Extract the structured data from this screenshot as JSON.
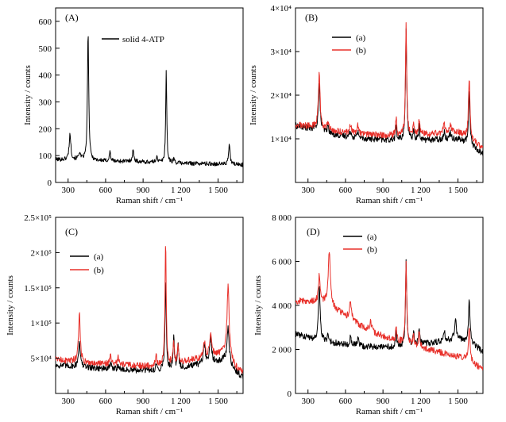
{
  "chart_data": [
    {
      "panel": "(A)",
      "type": "line",
      "xlabel": "Raman shift / cm⁻¹",
      "ylabel": "Intensity / counts",
      "xlim": [
        200,
        1700
      ],
      "ylim": [
        0,
        650
      ],
      "x_ticks": [
        300,
        600,
        900,
        1200,
        1500
      ],
      "x_tick_labels": [
        "300",
        "600",
        "900",
        "1 200",
        "1 500"
      ],
      "y_ticks": [
        0,
        100,
        200,
        300,
        400,
        500,
        600
      ],
      "y_tick_labels": [
        "0",
        "100",
        "200",
        "300",
        "400",
        "500",
        "600"
      ],
      "legend": "top-right",
      "series": [
        {
          "name": "solid 4-ATP",
          "color": "#000000",
          "baseline": [
            [
              200,
              85
            ],
            [
              400,
              85
            ],
            [
              600,
              80
            ],
            [
              800,
              78
            ],
            [
              1000,
              75
            ],
            [
              1200,
              72
            ],
            [
              1400,
              70
            ],
            [
              1600,
              68
            ],
            [
              1700,
              66
            ]
          ],
          "peaks": [
            [
              315,
              95,
              8
            ],
            [
              390,
              25,
              8
            ],
            [
              460,
              480,
              6
            ],
            [
              635,
              35,
              6
            ],
            [
              820,
              40,
              8
            ],
            [
              1010,
              25,
              6
            ],
            [
              1085,
              345,
              5
            ],
            [
              1145,
              15,
              6
            ],
            [
              1590,
              80,
              6
            ]
          ]
        }
      ]
    },
    {
      "panel": "(B)",
      "type": "line",
      "xlabel": "Raman shift / cm⁻¹",
      "ylabel": "Intensity / counts",
      "xlim": [
        200,
        1700
      ],
      "ylim": [
        0,
        40000
      ],
      "x_ticks": [
        300,
        600,
        900,
        1200,
        1500
      ],
      "x_tick_labels": [
        "300",
        "600",
        "900",
        "1 200",
        "1 500"
      ],
      "y_ticks": [
        10000,
        20000,
        30000,
        40000
      ],
      "y_tick_labels": [
        "1×10⁴",
        "2×10⁴",
        "3×10⁴",
        "4×10⁴"
      ],
      "legend": "top-left",
      "series": [
        {
          "name": "(a)",
          "color": "#000000",
          "baseline": [
            [
              200,
              13000
            ],
            [
              350,
              12200
            ],
            [
              500,
              11000
            ],
            [
              700,
              10200
            ],
            [
              900,
              9800
            ],
            [
              1100,
              9600
            ],
            [
              1300,
              9800
            ],
            [
              1500,
              10000
            ],
            [
              1600,
              8500
            ],
            [
              1700,
              6500
            ]
          ],
          "peaks": [
            [
              390,
              10500,
              8
            ],
            [
              460,
              1500,
              8
            ],
            [
              640,
              1500,
              7
            ],
            [
              700,
              1500,
              7
            ],
            [
              1005,
              3500,
              5
            ],
            [
              1085,
              25500,
              6
            ],
            [
              1145,
              2200,
              6
            ],
            [
              1190,
              3000,
              6
            ],
            [
              1390,
              1500,
              8
            ],
            [
              1440,
              1500,
              8
            ],
            [
              1590,
              12000,
              7
            ]
          ]
        },
        {
          "name": "(b)",
          "color": "#e8302a",
          "baseline": [
            [
              200,
              13200
            ],
            [
              350,
              12800
            ],
            [
              500,
              11800
            ],
            [
              700,
              11200
            ],
            [
              900,
              10800
            ],
            [
              1100,
              10800
            ],
            [
              1300,
              11200
            ],
            [
              1500,
              11500
            ],
            [
              1600,
              10000
            ],
            [
              1700,
              7800
            ]
          ],
          "peaks": [
            [
              390,
              12800,
              8
            ],
            [
              460,
              1500,
              8
            ],
            [
              640,
              2000,
              7
            ],
            [
              700,
              2000,
              7
            ],
            [
              1005,
              4000,
              5
            ],
            [
              1085,
              25700,
              6
            ],
            [
              1145,
              2500,
              6
            ],
            [
              1190,
              3500,
              6
            ],
            [
              1390,
              2000,
              8
            ],
            [
              1440,
              2000,
              8
            ],
            [
              1590,
              14000,
              7
            ]
          ]
        }
      ]
    },
    {
      "panel": "(C)",
      "type": "line",
      "xlabel": "Raman shift / cm⁻¹",
      "ylabel": "Intensity / counts",
      "xlim": [
        200,
        1700
      ],
      "ylim": [
        0,
        250000
      ],
      "x_ticks": [
        300,
        600,
        900,
        1200,
        1500
      ],
      "x_tick_labels": [
        "300",
        "600",
        "900",
        "1 200",
        "1 500"
      ],
      "y_ticks": [
        50000,
        100000,
        150000,
        200000,
        250000
      ],
      "y_tick_labels": [
        "5×10⁴",
        "1×10⁵",
        "1.5×10⁵",
        "2×10⁵",
        "2.5×10⁵"
      ],
      "legend": "top-left",
      "series": [
        {
          "name": "(a)",
          "color": "#000000",
          "baseline": [
            [
              200,
              40000
            ],
            [
              400,
              38000
            ],
            [
              600,
              35000
            ],
            [
              800,
              33000
            ],
            [
              1000,
              33000
            ],
            [
              1200,
              36000
            ],
            [
              1400,
              42000
            ],
            [
              1550,
              48000
            ],
            [
              1650,
              30000
            ],
            [
              1700,
              22000
            ]
          ],
          "peaks": [
            [
              390,
              37000,
              8
            ],
            [
              640,
              8000,
              7
            ],
            [
              700,
              7000,
              7
            ],
            [
              1005,
              7000,
              5
            ],
            [
              1080,
              123000,
              6
            ],
            [
              1145,
              45000,
              6
            ],
            [
              1180,
              35000,
              6
            ],
            [
              1390,
              28000,
              9
            ],
            [
              1440,
              38000,
              9
            ],
            [
              1580,
              50000,
              10
            ]
          ]
        },
        {
          "name": "(b)",
          "color": "#e8302a",
          "baseline": [
            [
              200,
              48000
            ],
            [
              400,
              45000
            ],
            [
              600,
              42000
            ],
            [
              800,
              40000
            ],
            [
              1000,
              39000
            ],
            [
              1200,
              44000
            ],
            [
              1400,
              52000
            ],
            [
              1550,
              58000
            ],
            [
              1650,
              36000
            ],
            [
              1700,
              28000
            ]
          ],
          "peaks": [
            [
              390,
              70000,
              8
            ],
            [
              640,
              12000,
              7
            ],
            [
              700,
              10000,
              7
            ],
            [
              1005,
              20000,
              5
            ],
            [
              1080,
              173000,
              6
            ],
            [
              1145,
              30000,
              6
            ],
            [
              1180,
              25000,
              6
            ],
            [
              1390,
              22000,
              9
            ],
            [
              1440,
              30000,
              9
            ],
            [
              1580,
              102000,
              10
            ]
          ]
        }
      ]
    },
    {
      "panel": "(D)",
      "type": "line",
      "xlabel": "Raman shift / cm⁻¹",
      "ylabel": "Intensity / counts",
      "xlim": [
        200,
        1700
      ],
      "ylim": [
        0,
        8000
      ],
      "x_ticks": [
        300,
        600,
        900,
        1200,
        1500
      ],
      "x_tick_labels": [
        "300",
        "600",
        "900",
        "1 200",
        "1 500"
      ],
      "y_ticks": [
        0,
        2000,
        4000,
        6000,
        8000
      ],
      "y_tick_labels": [
        "0",
        "2 000",
        "4 000",
        "6 000",
        "8 000"
      ],
      "legend": "top-center",
      "series": [
        {
          "name": "(a)",
          "color": "#000000",
          "baseline": [
            [
              200,
              2700
            ],
            [
              350,
              2450
            ],
            [
              500,
              2300
            ],
            [
              700,
              2150
            ],
            [
              900,
              2100
            ],
            [
              1100,
              2150
            ],
            [
              1300,
              2300
            ],
            [
              1500,
              2500
            ],
            [
              1600,
              2300
            ],
            [
              1700,
              1900
            ]
          ],
          "peaks": [
            [
              390,
              2500,
              8
            ],
            [
              460,
              300,
              8
            ],
            [
              640,
              400,
              7
            ],
            [
              700,
              350,
              7
            ],
            [
              1005,
              700,
              5
            ],
            [
              1085,
              3800,
              6
            ],
            [
              1145,
              600,
              6
            ],
            [
              1190,
              800,
              6
            ],
            [
              1390,
              400,
              8
            ],
            [
              1480,
              900,
              8
            ],
            [
              1590,
              1900,
              7
            ]
          ]
        },
        {
          "name": "(b)",
          "color": "#e8302a",
          "baseline": [
            [
              200,
              4200
            ],
            [
              300,
              4200
            ],
            [
              450,
              4100
            ],
            [
              600,
              3500
            ],
            [
              800,
              2800
            ],
            [
              1000,
              2400
            ],
            [
              1200,
              2100
            ],
            [
              1400,
              1800
            ],
            [
              1550,
              1600
            ],
            [
              1700,
              1100
            ]
          ],
          "peaks": [
            [
              390,
              1200,
              8
            ],
            [
              470,
              2400,
              10
            ],
            [
              640,
              800,
              10
            ],
            [
              800,
              500,
              10
            ],
            [
              1005,
              700,
              5
            ],
            [
              1085,
              3600,
              6
            ],
            [
              1145,
              500,
              6
            ],
            [
              1190,
              700,
              6
            ],
            [
              1590,
              1600,
              7
            ]
          ]
        }
      ]
    }
  ],
  "panels": [
    {
      "title": "(A)",
      "xlabel": "Raman shift / cm⁻¹",
      "ylabel": "Intensity / counts",
      "legend": [
        {
          "label": "solid 4-ATP",
          "color": "#000000"
        }
      ]
    },
    {
      "title": "(B)",
      "xlabel": "Raman shift / cm⁻¹",
      "ylabel": "Intensity / counts",
      "legend": [
        {
          "label": "(a)",
          "color": "#000000"
        },
        {
          "label": "(b)",
          "color": "#e8302a"
        }
      ]
    },
    {
      "title": "(C)",
      "xlabel": "Raman shift / cm⁻¹",
      "ylabel": "Intensity / counts",
      "legend": [
        {
          "label": "(a)",
          "color": "#000000"
        },
        {
          "label": "(b)",
          "color": "#e8302a"
        }
      ]
    },
    {
      "title": "(D)",
      "xlabel": "Raman shift / cm⁻¹",
      "ylabel": "Intensity / counts",
      "legend": [
        {
          "label": "(a)",
          "color": "#000000"
        },
        {
          "label": "(b)",
          "color": "#e8302a"
        }
      ]
    }
  ]
}
